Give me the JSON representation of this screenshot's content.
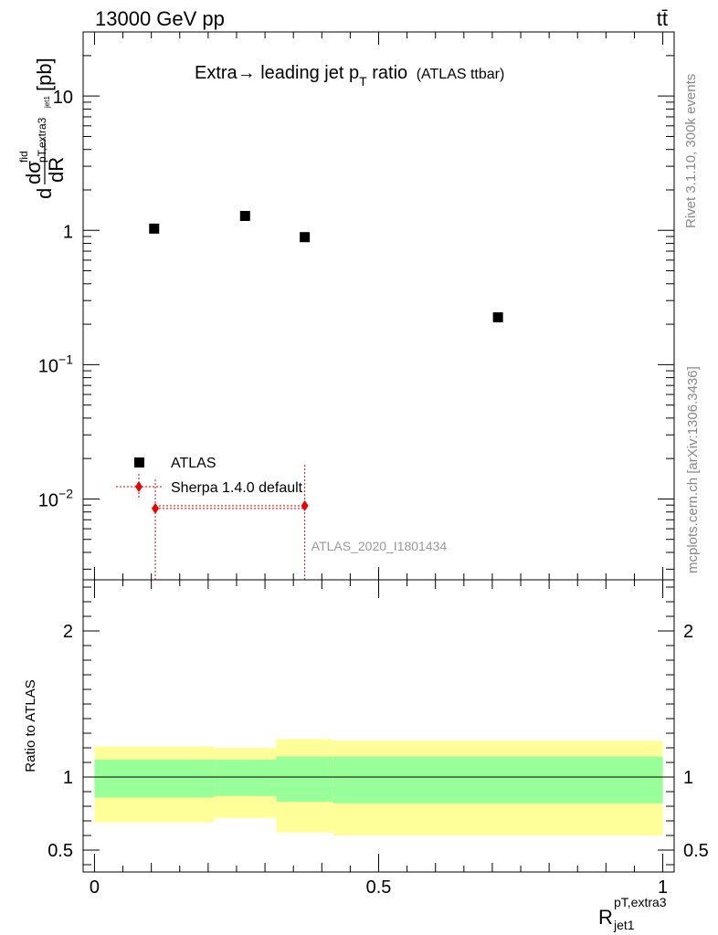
{
  "header": {
    "energy_label": "13000 GeV pp",
    "process_label": "tt̄"
  },
  "side_labels": {
    "rivet": "Rivet 3.1.10,  300k events",
    "mcplots": "mcplots.cern.ch [arXiv:1306.3436]"
  },
  "chart_data": [
    {
      "type": "scatter",
      "panel": "main",
      "title": "Extra→ leading jet p",
      "title_sub": "T",
      "title_suffix": " ratio",
      "title_note": "(ATLAS ttbar)",
      "ylabel": {
        "d": "d",
        "sigma": "dσ",
        "sigma_sup": "fid",
        "sigma_sub": "pT,extra3",
        "sigma_sub2": "jet1",
        "denom": "dR",
        "unit": "[pb]"
      },
      "y_scale": "log",
      "ylim": [
        0.0025,
        30
      ],
      "xlim": [
        -0.02,
        1.02
      ],
      "y_tick_labels": [
        {
          "value": 10,
          "label": "10"
        },
        {
          "value": 1,
          "label": "1"
        },
        {
          "value": 0.1,
          "label": "10",
          "exp": "−1"
        },
        {
          "value": 0.01,
          "label": "10",
          "exp": "−2"
        }
      ],
      "series": [
        {
          "name": "ATLAS",
          "color": "#000000",
          "marker": "square",
          "points": [
            {
              "x": 0.105,
              "y": 1.03
            },
            {
              "x": 0.265,
              "y": 1.28
            },
            {
              "x": 0.37,
              "y": 0.89
            },
            {
              "x": 0.71,
              "y": 0.225
            }
          ]
        },
        {
          "name": "Sherpa 1.4.0 default",
          "color": "#ee0000",
          "marker": "diamond",
          "points": [
            {
              "x": 0.107,
              "y": 0.0085,
              "xerr": [
                0.107,
                0.37
              ],
              "yerr": [
                0.0025,
                0.0145
              ]
            },
            {
              "x": 0.37,
              "y": 0.0089,
              "xerr": [
                0.107,
                0.37
              ],
              "yerr": [
                0.0025,
                0.018
              ]
            }
          ]
        }
      ],
      "annotation": "ATLAS_2020_I1801434"
    },
    {
      "type": "area",
      "panel": "ratio",
      "ylabel": "Ratio to ATLAS",
      "ylim": [
        0.35,
        2.35
      ],
      "xlim": [
        -0.02,
        1.02
      ],
      "y_tick_labels": [
        {
          "value": 2,
          "label": "2"
        },
        {
          "value": 1,
          "label": "1"
        },
        {
          "value": 0.5,
          "label": "0.5"
        }
      ],
      "x_tick_labels": [
        {
          "value": 0,
          "label": "0"
        },
        {
          "value": 0.5,
          "label": "0.5"
        },
        {
          "value": 1,
          "label": "1"
        }
      ],
      "xlabel": {
        "base": "R",
        "sup": "pT,extra3",
        "sub": "jet1"
      },
      "reference_line": 1,
      "bands": [
        {
          "x0": 0.0,
          "x1": 0.21,
          "stat": [
            0.86,
            1.12
          ],
          "total": [
            0.69,
            1.21
          ],
          "stat_color": "#99ff99",
          "total_color": "#ffff99"
        },
        {
          "x0": 0.21,
          "x1": 0.32,
          "stat": [
            0.87,
            1.12
          ],
          "total": [
            0.72,
            1.2
          ],
          "stat_color": "#99ff99",
          "total_color": "#ffff99"
        },
        {
          "x0": 0.32,
          "x1": 0.42,
          "stat": [
            0.83,
            1.14
          ],
          "total": [
            0.62,
            1.26
          ],
          "stat_color": "#99ff99",
          "total_color": "#ffff99"
        },
        {
          "x0": 0.42,
          "x1": 1.0,
          "stat": [
            0.82,
            1.14
          ],
          "total": [
            0.6,
            1.25
          ],
          "stat_color": "#99ff99",
          "total_color": "#ffff99"
        }
      ]
    }
  ]
}
